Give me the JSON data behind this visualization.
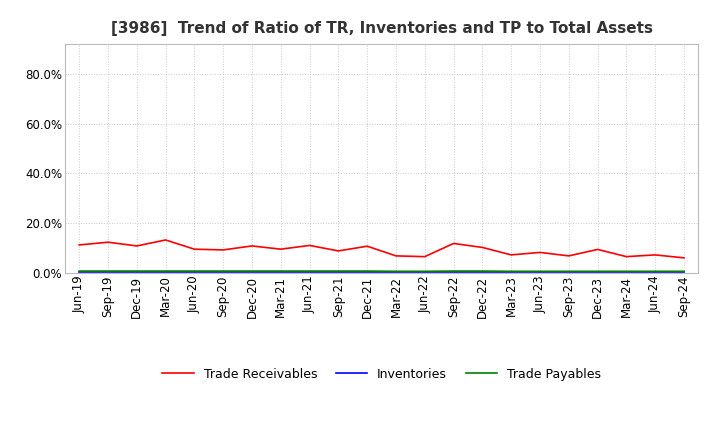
{
  "title": "[3986]  Trend of Ratio of TR, Inventories and TP to Total Assets",
  "title_fontsize": 11,
  "background_color": "#ffffff",
  "grid_color": "#cccccc",
  "ylim": [
    0,
    0.92
  ],
  "yticks": [
    0.0,
    0.2,
    0.4,
    0.6,
    0.8
  ],
  "ytick_labels": [
    "0.0%",
    "20.0%",
    "40.0%",
    "60.0%",
    "80.0%"
  ],
  "x_labels": [
    "Jun-19",
    "Sep-19",
    "Dec-19",
    "Mar-20",
    "Jun-20",
    "Sep-20",
    "Dec-20",
    "Mar-21",
    "Jun-21",
    "Sep-21",
    "Dec-21",
    "Mar-22",
    "Jun-22",
    "Sep-22",
    "Dec-22",
    "Mar-23",
    "Jun-23",
    "Sep-23",
    "Dec-23",
    "Mar-24",
    "Jun-24",
    "Sep-24"
  ],
  "trade_receivables": [
    0.112,
    0.123,
    0.108,
    0.132,
    0.095,
    0.092,
    0.108,
    0.095,
    0.11,
    0.088,
    0.107,
    0.068,
    0.065,
    0.118,
    0.102,
    0.072,
    0.082,
    0.068,
    0.094,
    0.065,
    0.072,
    0.06
  ],
  "inventories": [
    0.003,
    0.003,
    0.003,
    0.003,
    0.003,
    0.003,
    0.003,
    0.003,
    0.003,
    0.003,
    0.003,
    0.003,
    0.003,
    0.003,
    0.003,
    0.003,
    0.003,
    0.003,
    0.003,
    0.003,
    0.003,
    0.003
  ],
  "trade_payables": [
    0.007,
    0.007,
    0.007,
    0.007,
    0.007,
    0.007,
    0.007,
    0.007,
    0.007,
    0.007,
    0.007,
    0.006,
    0.006,
    0.007,
    0.007,
    0.006,
    0.006,
    0.006,
    0.006,
    0.006,
    0.006,
    0.006
  ],
  "tr_color": "#ff0000",
  "inv_color": "#0000ff",
  "tp_color": "#008000",
  "line_width": 1.2,
  "legend_labels": [
    "Trade Receivables",
    "Inventories",
    "Trade Payables"
  ],
  "legend_fontsize": 9,
  "tick_fontsize": 8.5
}
